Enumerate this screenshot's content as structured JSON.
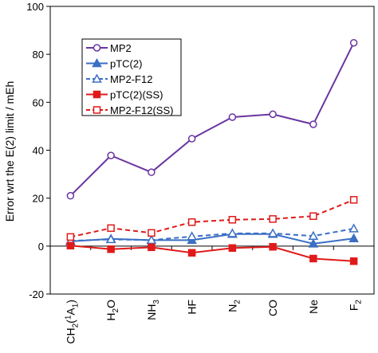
{
  "chart_data": {
    "type": "line",
    "ylabel": "Error wrt the E(2) limit / mEh",
    "ylim": [
      -20,
      100
    ],
    "yticks": [
      -20,
      0,
      20,
      40,
      60,
      80,
      100
    ],
    "categories": [
      {
        "label": "CH2(1A1)",
        "base": "CH",
        "sub1": "2",
        "paren": "(",
        "sup": "1",
        "mid": "A",
        "sub2": "1",
        "close": ")"
      },
      {
        "label": "H2O",
        "base": "H",
        "sub1": "2",
        "mid": "O"
      },
      {
        "label": "NH3",
        "base": "NH",
        "sub1": "3"
      },
      {
        "label": "HF",
        "base": "HF"
      },
      {
        "label": "N2",
        "base": "N",
        "sub1": "2"
      },
      {
        "label": "CO",
        "base": "CO"
      },
      {
        "label": "Ne",
        "base": "Ne"
      },
      {
        "label": "F2",
        "base": "F",
        "sub1": "2"
      }
    ],
    "legend_position": "top-left",
    "series": [
      {
        "name": "MP2",
        "values": [
          21,
          37.8,
          30.8,
          44.8,
          53.8,
          55,
          50.8,
          84.8
        ],
        "color": "#6a35a0",
        "marker": "circle-open",
        "dash": false
      },
      {
        "name": "pTC(2)",
        "values": [
          2,
          3,
          2.5,
          2.5,
          5,
          5,
          1,
          3.2
        ],
        "color": "#3a6fc4",
        "marker": "triangle-filled",
        "dash": false
      },
      {
        "name": "MP2-F12",
        "values": [
          2.2,
          2.8,
          2.5,
          4,
          5.3,
          5.3,
          4.2,
          7.3
        ],
        "color": "#3a6fc4",
        "marker": "triangle-open",
        "dash": true
      },
      {
        "name": "pTC(2)(SS)",
        "values": [
          0.2,
          -1.3,
          -0.5,
          -2.8,
          -0.8,
          -0.3,
          -5.2,
          -6.3
        ],
        "color": "#e01a1a",
        "marker": "square-filled",
        "dash": false
      },
      {
        "name": "MP2-F12(SS)",
        "values": [
          3.8,
          7.5,
          5.5,
          10,
          11,
          11.3,
          12.5,
          19.3
        ],
        "color": "#e01a1a",
        "marker": "square-open",
        "dash": true
      }
    ]
  }
}
